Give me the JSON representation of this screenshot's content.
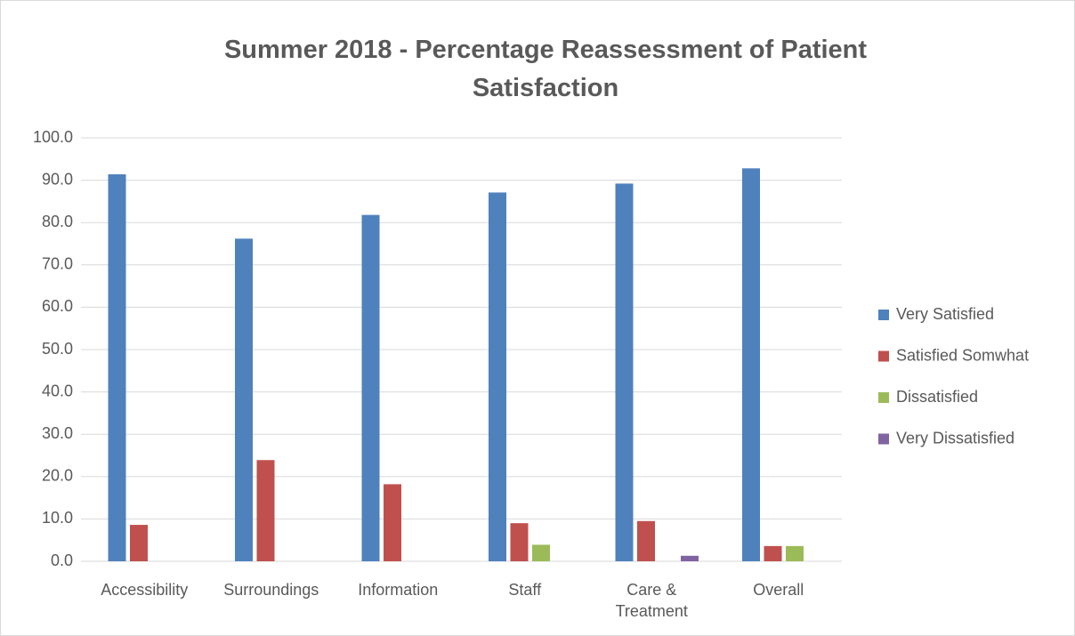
{
  "chart_data": {
    "type": "bar",
    "title": "Summer 2018 - Percentage Reassessment of Patient Satisfaction",
    "categories": [
      "Accessibility",
      "Surroundings",
      "Information",
      "Staff",
      "Care & Treatment",
      "Overall"
    ],
    "series": [
      {
        "name": "Very Satisfied",
        "color": "#4f81bd",
        "values": [
          91.4,
          76.2,
          81.8,
          87.1,
          89.2,
          92.8
        ]
      },
      {
        "name": "Satisfied Somwhat",
        "color": "#c0504d",
        "values": [
          8.6,
          23.9,
          18.2,
          9.0,
          9.5,
          3.6
        ]
      },
      {
        "name": "Dissatisfied",
        "color": "#9bbb59",
        "values": [
          0,
          0,
          0,
          3.9,
          0,
          3.6
        ]
      },
      {
        "name": "Very Dissatisfied",
        "color": "#8064a2",
        "values": [
          0,
          0,
          0,
          0,
          1.3,
          0
        ]
      }
    ],
    "ylim": [
      0,
      100
    ],
    "yticks": [
      {
        "value": 0,
        "label": "0.0"
      },
      {
        "value": 10,
        "label": "10.0"
      },
      {
        "value": 20,
        "label": "20.0"
      },
      {
        "value": 30,
        "label": "30.0"
      },
      {
        "value": 40,
        "label": "40.0"
      },
      {
        "value": 50,
        "label": "50.0"
      },
      {
        "value": 60,
        "label": "60.0"
      },
      {
        "value": 70,
        "label": "70.0"
      },
      {
        "value": 80,
        "label": "80.0"
      },
      {
        "value": 90,
        "label": "90.0"
      },
      {
        "value": 100,
        "label": "100.0"
      }
    ],
    "grid": true,
    "legend": "right"
  }
}
